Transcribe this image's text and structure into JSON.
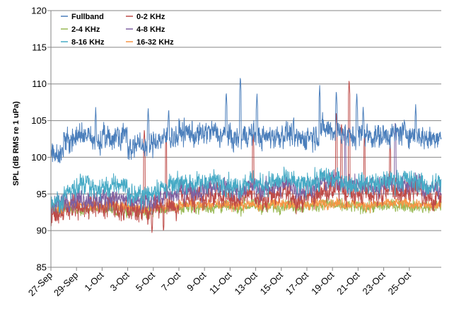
{
  "chart_data": {
    "type": "line",
    "title": "",
    "xlabel": "",
    "ylabel": "SPL (dB RMS re 1 uPa)",
    "ylim": [
      85,
      120
    ],
    "yticks": [
      "85",
      "90",
      "95",
      "100",
      "105",
      "110",
      "115",
      "120"
    ],
    "xticks": [
      "27-Sep",
      "29-Sep",
      "1-Oct",
      "3-Oct",
      "5-Oct",
      "7-Oct",
      "9-Oct",
      "11-Oct",
      "13-Oct",
      "15-Oct",
      "17-Oct",
      "19-Oct",
      "21-Oct",
      "23-Oct",
      "25-Oct"
    ],
    "x_range_days": [
      0,
      30.5
    ],
    "grid": "horizontal",
    "legend_position": "top-left",
    "series": [
      {
        "name": "Fullband",
        "color": "#4a7ebb",
        "daily_means": [
          100.6,
          102.4,
          103.0,
          102.2,
          102.6,
          103.1,
          101.5,
          101.6,
          102.4,
          102.8,
          103.4,
          103.0,
          103.5,
          103.0,
          102.5,
          103.1,
          102.7,
          102.9,
          103.2,
          102.5,
          103.0,
          103.8,
          103.5,
          102.8,
          103.0,
          102.9,
          103.1,
          103.4,
          103.0,
          102.6,
          103.0
        ],
        "noise": 1.6,
        "peaks": [
          {
            "day": 3.5,
            "value": 106.8
          },
          {
            "day": 7.6,
            "value": 106.8
          },
          {
            "day": 9.2,
            "value": 106.7
          },
          {
            "day": 13.7,
            "value": 109.0
          },
          {
            "day": 14.8,
            "value": 111.1
          },
          {
            "day": 16.1,
            "value": 108.8
          },
          {
            "day": 21.0,
            "value": 109.8
          },
          {
            "day": 22.3,
            "value": 109.2
          },
          {
            "day": 23.9,
            "value": 108.8
          },
          {
            "day": 24.4,
            "value": 107.0
          },
          {
            "day": 28.5,
            "value": 107.2
          }
        ]
      },
      {
        "name": "0-2 KHz",
        "color": "#be4b48",
        "daily_means": [
          92.2,
          93.2,
          93.0,
          93.6,
          93.4,
          93.0,
          92.6,
          92.5,
          93.6,
          93.5,
          94.4,
          94.2,
          94.6,
          94.8,
          94.2,
          94.9,
          94.3,
          94.8,
          95.0,
          94.2,
          94.8,
          95.5,
          95.6,
          95.1,
          95.0,
          94.8,
          95.6,
          94.8,
          95.4,
          94.2,
          94.6
        ],
        "noise": 1.5,
        "peaks": [
          {
            "day": 7.3,
            "value": 104.0
          },
          {
            "day": 7.9,
            "value": 89.6
          },
          {
            "day": 8.8,
            "value": 89.8
          },
          {
            "day": 9.0,
            "value": 103.3
          },
          {
            "day": 15.8,
            "value": 103.5
          },
          {
            "day": 22.3,
            "value": 106.3
          },
          {
            "day": 22.7,
            "value": 104.8
          },
          {
            "day": 23.3,
            "value": 110.7
          },
          {
            "day": 24.5,
            "value": 103.2
          },
          {
            "day": 26.5,
            "value": 102.2
          }
        ]
      },
      {
        "name": "2-4 KHz",
        "color": "#98b954",
        "daily_means": [
          92.6,
          93.0,
          92.8,
          93.1,
          93.0,
          92.8,
          92.7,
          92.6,
          92.9,
          93.0,
          93.3,
          93.2,
          93.2,
          93.3,
          93.1,
          93.4,
          93.2,
          93.3,
          93.5,
          93.2,
          93.4,
          93.6,
          93.4,
          93.3,
          93.2,
          93.3,
          93.4,
          93.5,
          93.3,
          93.1,
          93.3
        ],
        "noise": 0.8,
        "peaks": []
      },
      {
        "name": "4-8 KHz",
        "color": "#7d60a0",
        "daily_means": [
          93.6,
          94.2,
          94.4,
          94.2,
          94.5,
          94.3,
          93.9,
          93.8,
          94.5,
          94.8,
          95.6,
          95.4,
          95.9,
          95.8,
          95.4,
          96.0,
          95.6,
          95.9,
          96.2,
          95.5,
          96.0,
          96.6,
          96.8,
          96.2,
          96.1,
          96.0,
          96.7,
          96.1,
          96.5,
          95.6,
          95.8
        ],
        "noise": 1.3,
        "peaks": [
          {
            "day": 23.0,
            "value": 104.0
          },
          {
            "day": 26.9,
            "value": 104.8
          }
        ]
      },
      {
        "name": "8-16 KHz",
        "color": "#46aac5",
        "daily_means": [
          93.8,
          95.4,
          96.2,
          95.6,
          95.9,
          96.3,
          94.8,
          94.9,
          95.8,
          96.0,
          96.6,
          96.4,
          96.8,
          96.5,
          96.0,
          96.7,
          96.3,
          96.6,
          96.9,
          96.2,
          96.7,
          97.2,
          96.9,
          96.3,
          96.5,
          96.4,
          96.8,
          97.0,
          96.7,
          96.0,
          96.5
        ],
        "noise": 1.4,
        "peaks": []
      },
      {
        "name": "16-32 KHz",
        "color": "#f79646",
        "daily_means": [
          93.0,
          93.5,
          93.4,
          93.4,
          93.5,
          93.3,
          93.1,
          93.0,
          93.3,
          93.4,
          93.6,
          93.5,
          93.6,
          93.6,
          93.4,
          93.6,
          93.5,
          93.6,
          93.7,
          93.5,
          93.6,
          93.8,
          93.7,
          93.6,
          93.5,
          93.6,
          93.7,
          93.7,
          93.6,
          93.4,
          93.5
        ],
        "noise": 0.7,
        "peaks": []
      }
    ]
  }
}
